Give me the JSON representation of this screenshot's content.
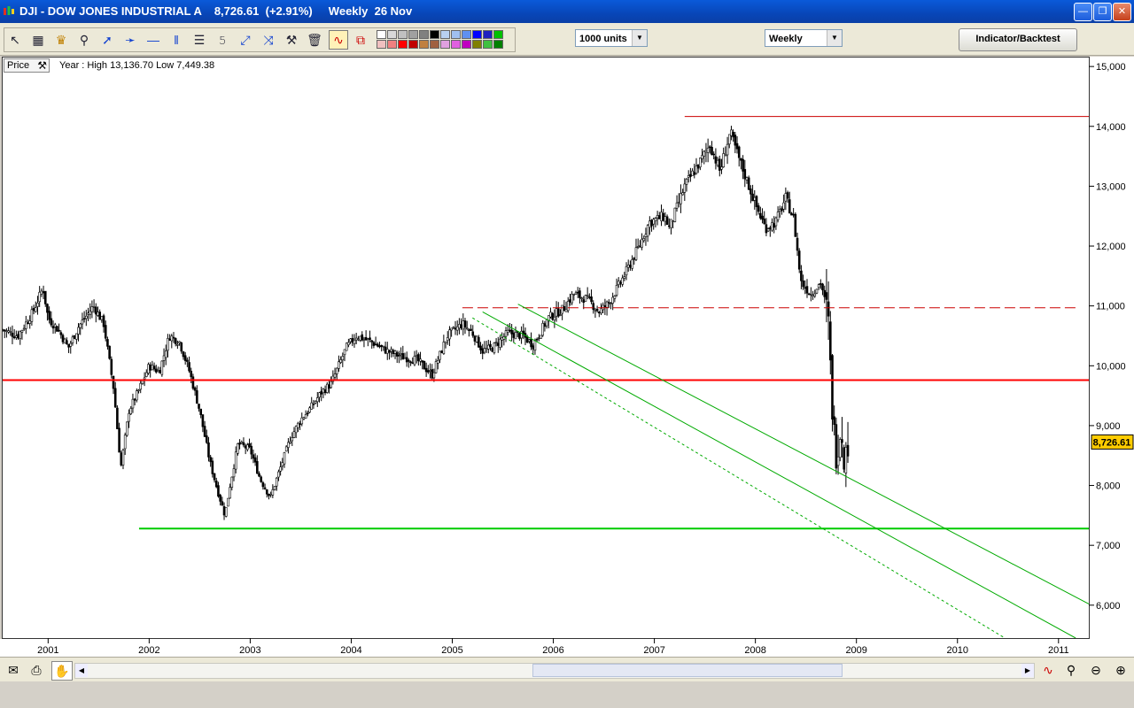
{
  "window": {
    "title": "DJI - DOW JONES INDUSTRIAL A    8,726.61  (+2.91%)     Weekly  26 Nov",
    "buttons": [
      "minimize",
      "maximize",
      "close"
    ]
  },
  "toolbar": {
    "tool_icons": [
      "pointer-icon",
      "ruler-icon",
      "bell-icon",
      "zoom-icon",
      "line-icon",
      "trendline-icon",
      "horizontal-line-icon",
      "vertical-line-icon",
      "fibonacci-icon",
      "text-icon",
      "arrow-icon",
      "crosshair-icon",
      "tools-icon",
      "trash-icon",
      "chart-line-icon",
      "chart-bar-icon"
    ],
    "swatch_colors": [
      "#ffffff",
      "#d8d8d8",
      "#c0c0c0",
      "#a0a0a0",
      "#808080",
      "#000000",
      "#b8d0f0",
      "#a0c0f0",
      "#6090f0",
      "#0000ff",
      "#2020c0",
      "#00c000",
      "#f0c0c0",
      "#f08080",
      "#ff0000",
      "#c00000",
      "#c08040",
      "#a06040",
      "#e0a0e0",
      "#e060e0",
      "#c000c0",
      "#808000",
      "#40c040",
      "#008000"
    ],
    "units_select": "1000 units",
    "period_select": "Weekly",
    "indicator_button": "Indicator/Backtest"
  },
  "panel": {
    "price_label": "Price",
    "year_info": "Year : High 13,136.70 Low 7,449.38"
  },
  "colors": {
    "candle": "#000000",
    "support_red": "#ff0000",
    "top_line": "#cc0000",
    "dashed_resistance": "#cc0000",
    "support_green": "#00cc00",
    "channel_green": "#009900",
    "last_price_bg": "#ffcc00"
  },
  "chart_data": {
    "type": "candlestick",
    "title": "DJI - DOW JONES INDUSTRIAL A",
    "last_price": "8,726.61",
    "last_price_value": 8726.61,
    "change": "(+2.91%)",
    "period": "Weekly",
    "date": "26 Nov",
    "ylim": [
      5450,
      15150
    ],
    "y_ticks": [
      6000,
      7000,
      8000,
      9000,
      10000,
      11000,
      12000,
      13000,
      14000,
      15000
    ],
    "y_tick_labels": [
      "6,000",
      "7,000",
      "8,000",
      "9,000",
      "10,000",
      "11,000",
      "12,000",
      "13,000",
      "14,000",
      "15,000"
    ],
    "xlim": [
      2000.55,
      2011.3
    ],
    "x_ticks": [
      2001,
      2002,
      2003,
      2004,
      2005,
      2006,
      2007,
      2008,
      2009,
      2010,
      2011
    ],
    "x_tick_labels": [
      "2001",
      "2002",
      "2003",
      "2004",
      "2005",
      "2006",
      "2007",
      "2008",
      "2009",
      "2010",
      "2011"
    ],
    "close_path": [
      [
        2000.55,
        10600
      ],
      [
        2000.7,
        10500
      ],
      [
        2000.85,
        10900
      ],
      [
        2000.95,
        11300
      ],
      [
        2001.0,
        10800
      ],
      [
        2001.1,
        10600
      ],
      [
        2001.2,
        10300
      ],
      [
        2001.3,
        10650
      ],
      [
        2001.45,
        11000
      ],
      [
        2001.55,
        10700
      ],
      [
        2001.65,
        9600
      ],
      [
        2001.72,
        8300
      ],
      [
        2001.8,
        9250
      ],
      [
        2001.9,
        9600
      ],
      [
        2002.0,
        10000
      ],
      [
        2002.1,
        9900
      ],
      [
        2002.2,
        10500
      ],
      [
        2002.3,
        10400
      ],
      [
        2002.4,
        9900
      ],
      [
        2002.5,
        9250
      ],
      [
        2002.6,
        8400
      ],
      [
        2002.68,
        7900
      ],
      [
        2002.75,
        7500
      ],
      [
        2002.8,
        8000
      ],
      [
        2002.88,
        8700
      ],
      [
        2003.0,
        8600
      ],
      [
        2003.1,
        8100
      ],
      [
        2003.2,
        7800
      ],
      [
        2003.3,
        8300
      ],
      [
        2003.4,
        8800
      ],
      [
        2003.5,
        9100
      ],
      [
        2003.6,
        9300
      ],
      [
        2003.7,
        9550
      ],
      [
        2003.8,
        9700
      ],
      [
        2003.95,
        10300
      ],
      [
        2004.05,
        10500
      ],
      [
        2004.2,
        10400
      ],
      [
        2004.35,
        10250
      ],
      [
        2004.5,
        10150
      ],
      [
        2004.65,
        10100
      ],
      [
        2004.8,
        9850
      ],
      [
        2004.95,
        10500
      ],
      [
        2005.1,
        10700
      ],
      [
        2005.2,
        10550
      ],
      [
        2005.3,
        10250
      ],
      [
        2005.4,
        10300
      ],
      [
        2005.55,
        10550
      ],
      [
        2005.7,
        10500
      ],
      [
        2005.8,
        10350
      ],
      [
        2005.95,
        10800
      ],
      [
        2006.1,
        10950
      ],
      [
        2006.2,
        11200
      ],
      [
        2006.35,
        11100
      ],
      [
        2006.45,
        10900
      ],
      [
        2006.55,
        11050
      ],
      [
        2006.7,
        11500
      ],
      [
        2006.85,
        12000
      ],
      [
        2006.95,
        12400
      ],
      [
        2007.1,
        12500
      ],
      [
        2007.15,
        12300
      ],
      [
        2007.3,
        13000
      ],
      [
        2007.45,
        13400
      ],
      [
        2007.55,
        13700
      ],
      [
        2007.65,
        13250
      ],
      [
        2007.75,
        13900
      ],
      [
        2007.85,
        13400
      ],
      [
        2008.0,
        12700
      ],
      [
        2008.1,
        12300
      ],
      [
        2008.2,
        12400
      ],
      [
        2008.3,
        12800
      ],
      [
        2008.38,
        12450
      ],
      [
        2008.45,
        11400
      ],
      [
        2008.55,
        11200
      ],
      [
        2008.65,
        11400
      ],
      [
        2008.72,
        10800
      ],
      [
        2008.76,
        9300
      ],
      [
        2008.8,
        8500
      ],
      [
        2008.85,
        9000
      ],
      [
        2008.88,
        8400
      ],
      [
        2008.92,
        8726
      ]
    ],
    "annotations": [
      {
        "type": "hline",
        "name": "2007 high",
        "value": 14165,
        "x": [
          2007.3,
          2011.3
        ],
        "style": "solid",
        "color": "#cc0000"
      },
      {
        "type": "hline",
        "name": "resistance",
        "value": 10970,
        "x": [
          2005.1,
          2011.2
        ],
        "style": "dashed",
        "color": "#cc0000"
      },
      {
        "type": "hline",
        "name": "support",
        "value": 9760,
        "x": [
          2000.55,
          2011.3
        ],
        "style": "solid",
        "color": "#ff0000"
      },
      {
        "type": "hline",
        "name": "2002 low",
        "value": 7280,
        "x": [
          2001.9,
          2011.3
        ],
        "style": "solid",
        "color": "#00cc00"
      },
      {
        "type": "trendline",
        "points": [
          [
            2005.65,
            11030
          ],
          [
            2011.3,
            6020
          ]
        ],
        "style": "solid",
        "color": "#00aa00"
      },
      {
        "type": "trendline",
        "points": [
          [
            2005.3,
            10900
          ],
          [
            2011.17,
            5450
          ]
        ],
        "style": "solid",
        "color": "#00aa00"
      },
      {
        "type": "trendline",
        "points": [
          [
            2005.2,
            10800
          ],
          [
            2010.47,
            5450
          ]
        ],
        "style": "dotted",
        "color": "#00aa00"
      }
    ]
  },
  "statusbar": {
    "icons": [
      "mail-icon",
      "print-icon",
      "hand-icon",
      "scroll-left-icon",
      "scroll-right-icon",
      "chart-icon",
      "zoom-fit-icon",
      "zoom-out-icon",
      "zoom-in-icon"
    ]
  }
}
